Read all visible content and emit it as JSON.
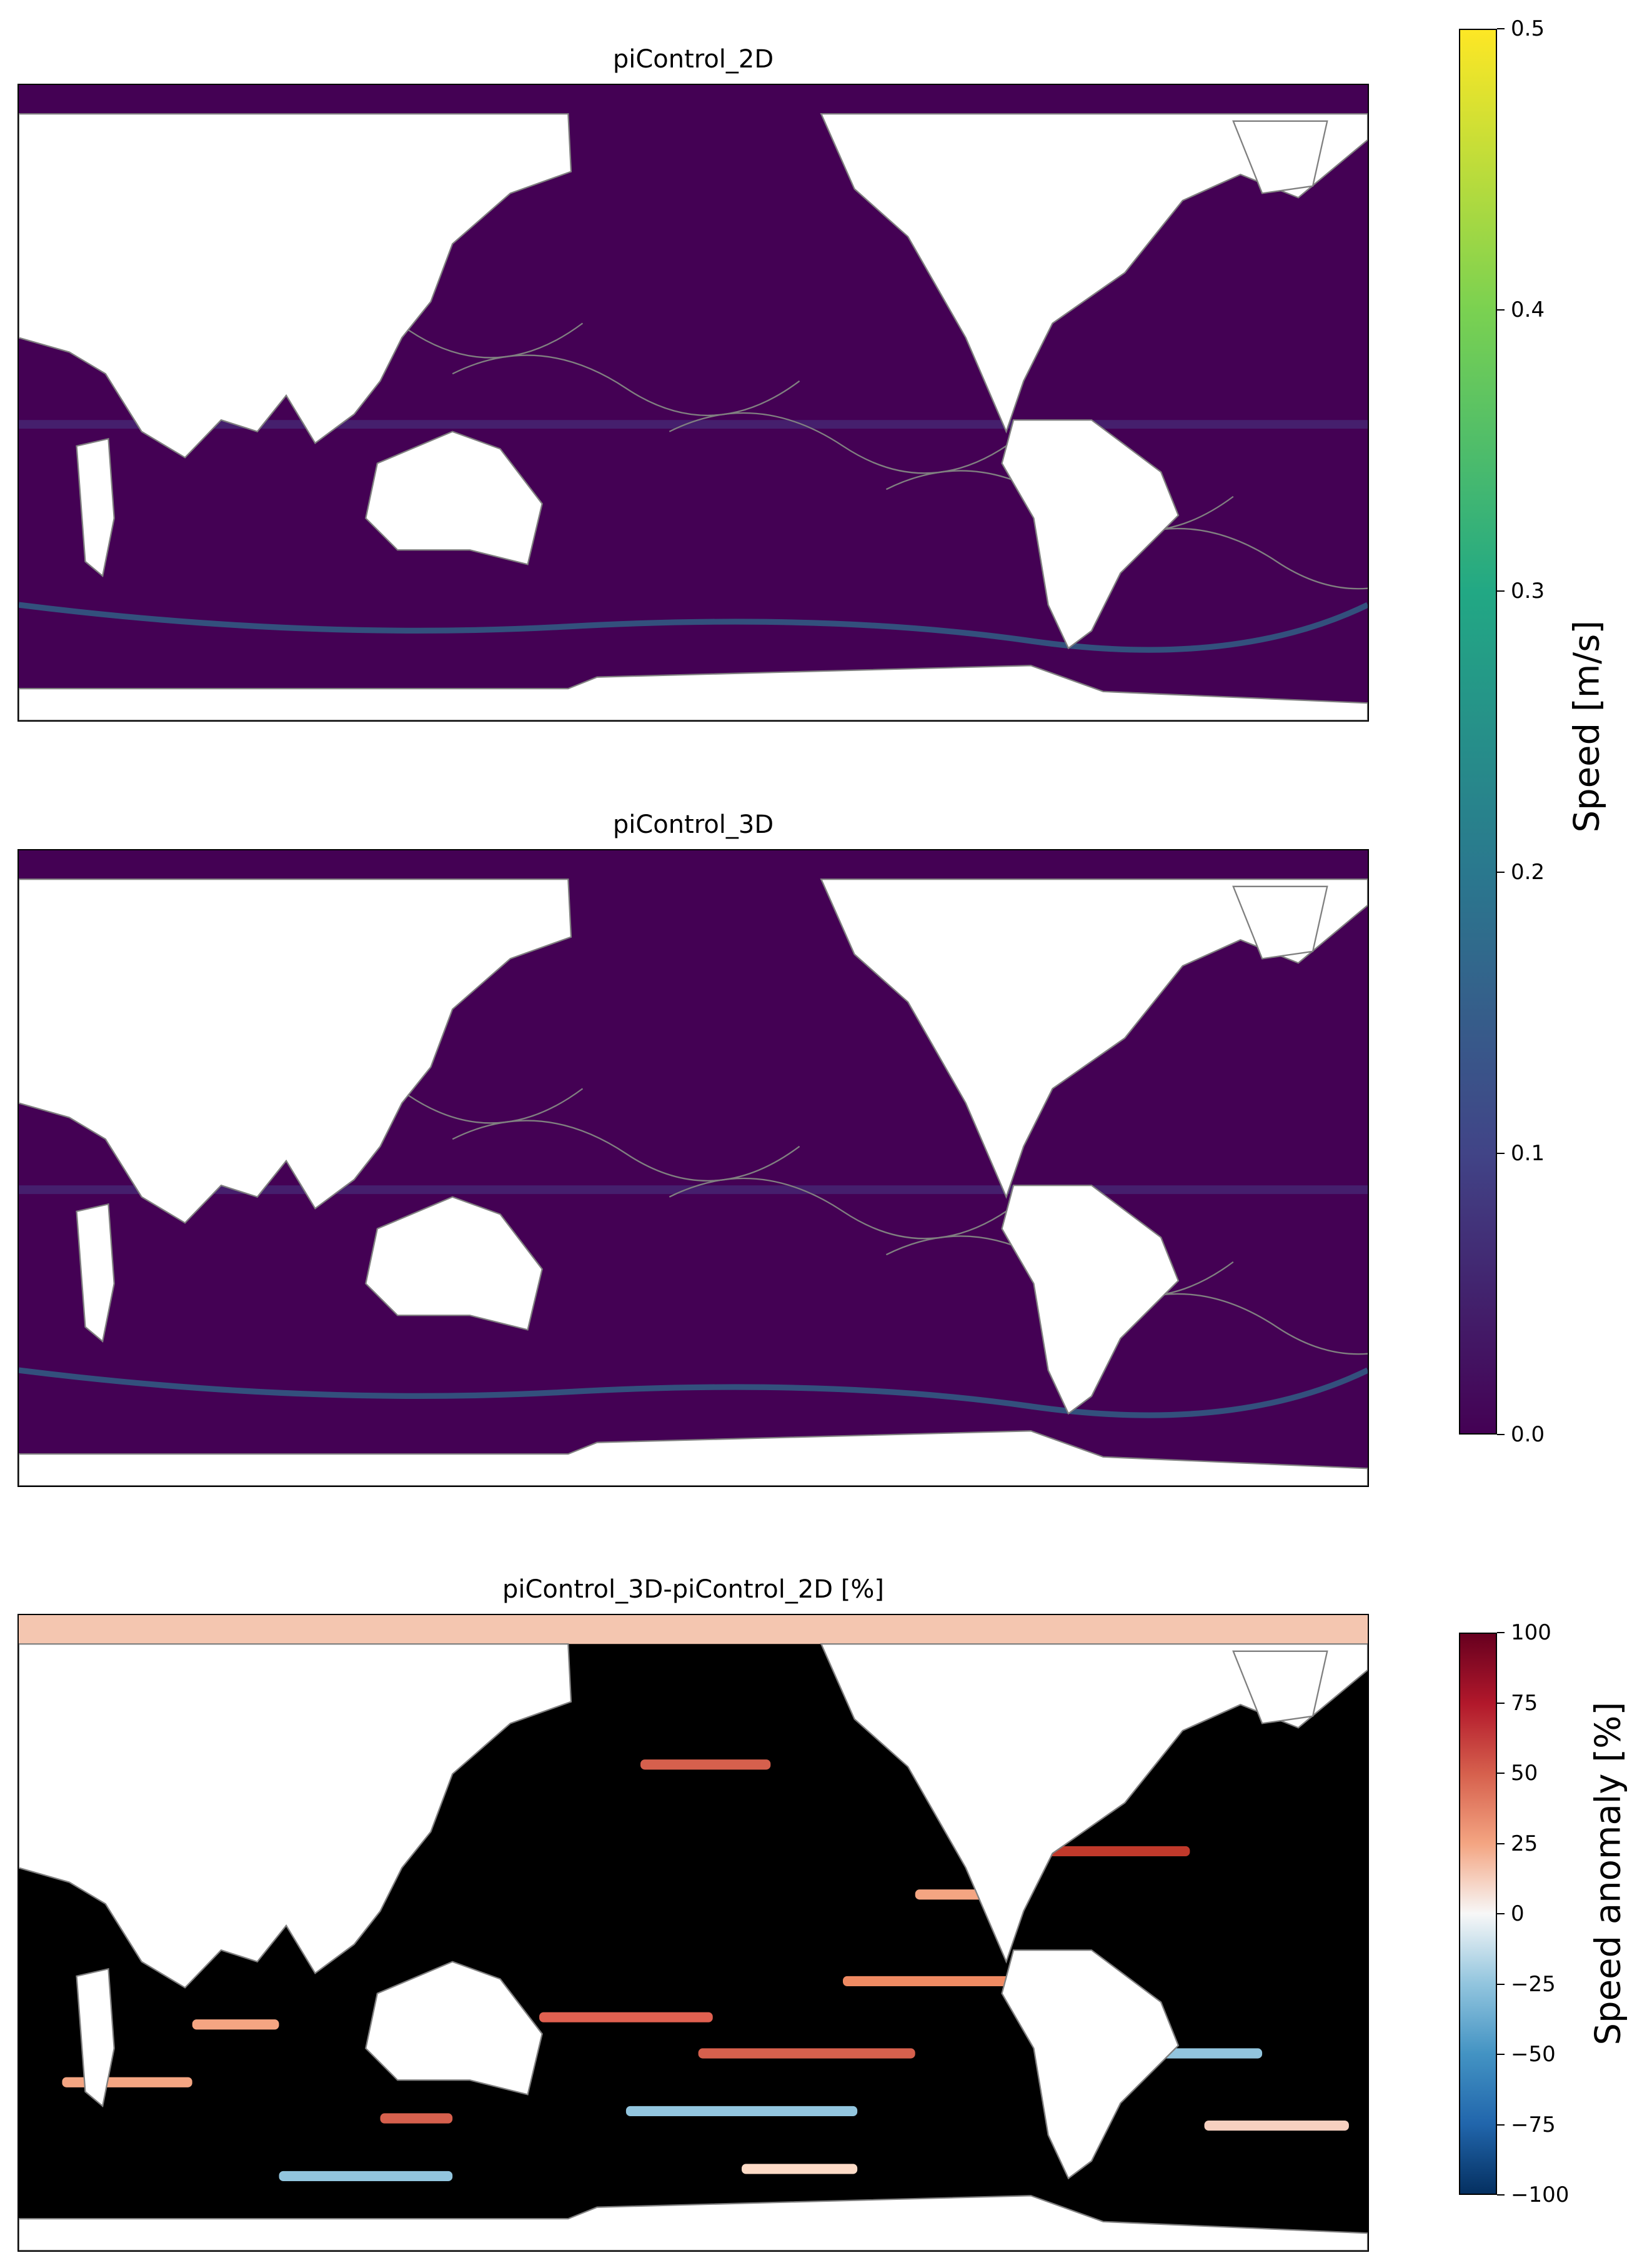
{
  "panels": [
    {
      "title": "piControl_2D",
      "variable": "speed"
    },
    {
      "title": "piControl_3D",
      "variable": "speed"
    },
    {
      "title": "piControl_3D-piControl_2D [%]",
      "variable": "speed anomaly"
    }
  ],
  "colorbars": [
    {
      "label": "Speed [m/s]",
      "colormap": "viridis",
      "ticks": [
        "0.0",
        "0.1",
        "0.2",
        "0.3",
        "0.4",
        "0.5"
      ],
      "range": [
        0,
        0.5
      ]
    },
    {
      "label": "Speed anomaly [%]",
      "colormap": "RdBu_r",
      "ticks": [
        "−100",
        "−75",
        "−50",
        "−25",
        "0",
        "25",
        "50",
        "75",
        "100"
      ],
      "range": [
        -100,
        100
      ]
    }
  ],
  "colors": {
    "ocean_low": "#440154",
    "anomaly_ocean": "#000000",
    "land": "#ffffff",
    "contour": "#808080"
  }
}
